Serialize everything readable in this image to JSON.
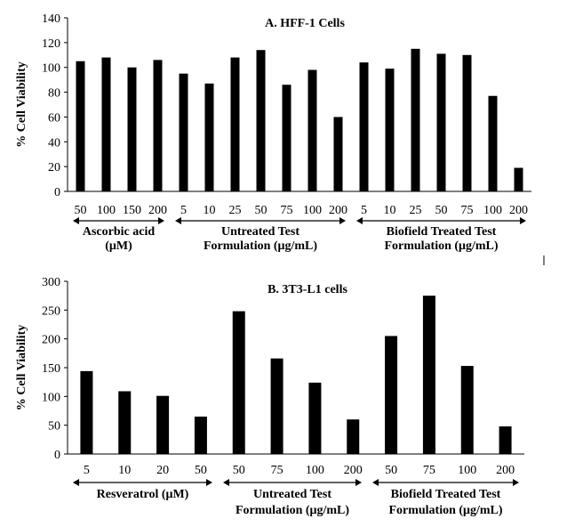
{
  "chart_data": [
    {
      "type": "bar",
      "title": "A. HFF-1 Cells",
      "ylabel": "% Cell Viability",
      "ylim": [
        0,
        140
      ],
      "yticks": [
        0,
        20,
        40,
        60,
        80,
        100,
        120,
        140
      ],
      "categories": [
        "50",
        "100",
        "150",
        "200",
        "5",
        "10",
        "25",
        "50",
        "75",
        "100",
        "200",
        "5",
        "10",
        "25",
        "50",
        "75",
        "100",
        "200"
      ],
      "values": [
        105,
        108,
        100,
        106,
        95,
        87,
        108,
        114,
        86,
        98,
        60,
        104,
        99,
        115,
        111,
        110,
        77,
        19
      ],
      "groups": [
        {
          "label_lines": [
            "Ascorbic acid",
            "(μM)"
          ],
          "count": 4
        },
        {
          "label_lines": [
            "Untreated Test",
            "Formulation  (μg/mL)"
          ],
          "count": 7
        },
        {
          "label_lines": [
            "Biofield Treated Test",
            "Formulation  (μg/mL)"
          ],
          "count": 7
        }
      ],
      "color": "#000000"
    },
    {
      "type": "bar",
      "title": "B. 3T3-L1 cells",
      "ylabel": "% Cell Viability",
      "ylim": [
        0,
        300
      ],
      "yticks": [
        0,
        50,
        100,
        150,
        200,
        250,
        300
      ],
      "categories": [
        "5",
        "10",
        "20",
        "50",
        "50",
        "75",
        "100",
        "200",
        "50",
        "75",
        "100",
        "200"
      ],
      "values": [
        144,
        109,
        101,
        65,
        248,
        166,
        124,
        60,
        205,
        275,
        153,
        48
      ],
      "groups": [
        {
          "label_lines": [
            "Resveratrol (μM)"
          ],
          "count": 4
        },
        {
          "label_lines": [
            "Untreated Test",
            "Formulation  (μg/mL)"
          ],
          "count": 4
        },
        {
          "label_lines": [
            "Biofield Treated Test",
            "Formulation  (μg/mL)"
          ],
          "count": 4
        }
      ],
      "color": "#000000"
    }
  ]
}
